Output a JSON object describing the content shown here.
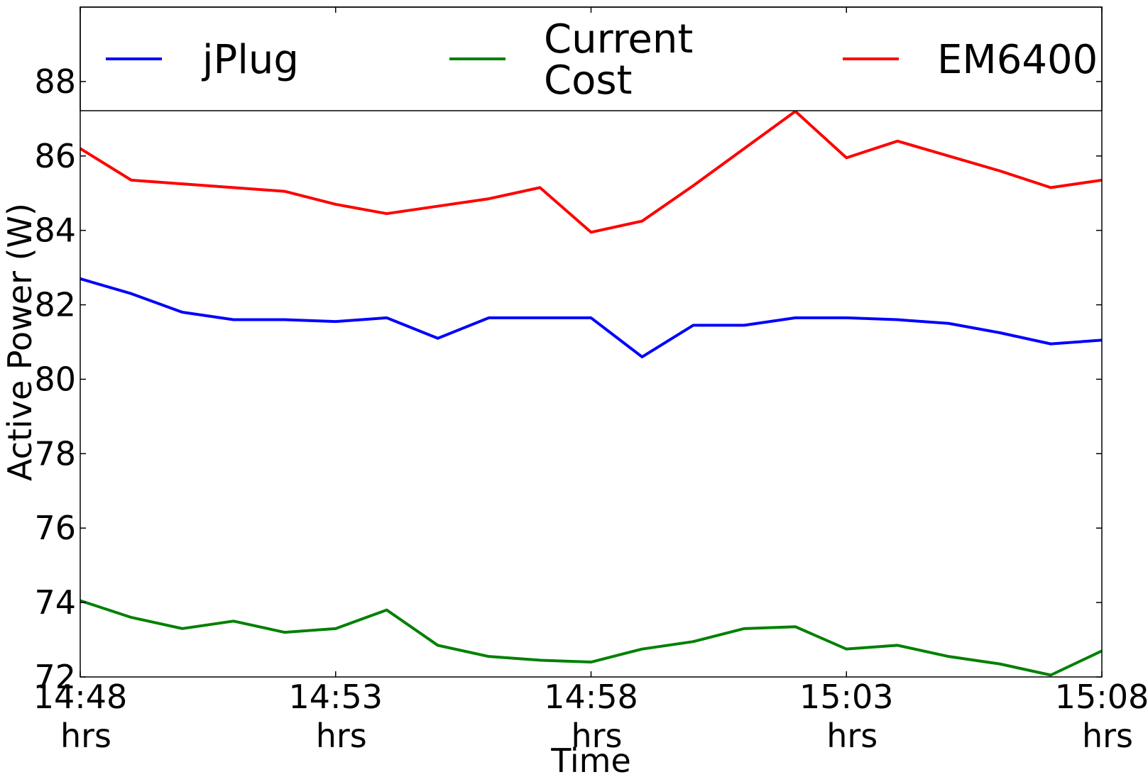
{
  "chart_data": {
    "type": "line",
    "title": "",
    "xlabel": "Time",
    "ylabel": "Active Power (W)",
    "ylim": [
      72,
      90
    ],
    "yticks": [
      72,
      74,
      76,
      78,
      80,
      82,
      84,
      86,
      88
    ],
    "x": [
      0,
      1,
      2,
      3,
      4,
      5,
      6,
      7,
      8,
      9,
      10,
      11,
      12,
      13,
      14,
      15,
      16,
      17,
      18,
      19,
      20
    ],
    "xlim": [
      0,
      20
    ],
    "xticks": [
      {
        "x": 0,
        "label": [
          "14:48",
          "hrs"
        ]
      },
      {
        "x": 5,
        "label": [
          "14:53",
          "hrs"
        ]
      },
      {
        "x": 10,
        "label": [
          "14:58",
          "hrs"
        ]
      },
      {
        "x": 15,
        "label": [
          "15:03",
          "hrs"
        ]
      },
      {
        "x": 20,
        "label": [
          "15:08",
          "hrs"
        ]
      }
    ],
    "grid": false,
    "legend": {
      "placement": "top",
      "columns": 3
    },
    "series": [
      {
        "name": "jPlug",
        "label_lines": [
          "jPlug"
        ],
        "color": "#0000ff",
        "values": [
          82.7,
          82.3,
          81.8,
          81.6,
          81.6,
          81.55,
          81.65,
          81.1,
          81.65,
          81.65,
          81.65,
          80.6,
          81.45,
          81.45,
          81.65,
          81.65,
          81.6,
          81.5,
          81.25,
          80.95,
          81.05
        ]
      },
      {
        "name": "Current Cost",
        "label_lines": [
          "Current",
          "Cost"
        ],
        "color": "#008000",
        "values": [
          74.05,
          73.6,
          73.3,
          73.5,
          73.2,
          73.3,
          73.8,
          72.85,
          72.55,
          72.45,
          72.4,
          72.75,
          72.95,
          73.3,
          73.35,
          72.75,
          72.85,
          72.55,
          72.35,
          72.05,
          72.7
        ]
      },
      {
        "name": "EM6400",
        "label_lines": [
          "EM6400"
        ],
        "color": "#ff0000",
        "values": [
          86.2,
          85.35,
          85.25,
          85.15,
          85.05,
          84.7,
          84.45,
          84.65,
          84.85,
          85.15,
          83.95,
          84.25,
          85.2,
          86.2,
          87.2,
          85.95,
          86.4,
          86.0,
          85.6,
          85.15,
          85.35
        ]
      }
    ]
  }
}
